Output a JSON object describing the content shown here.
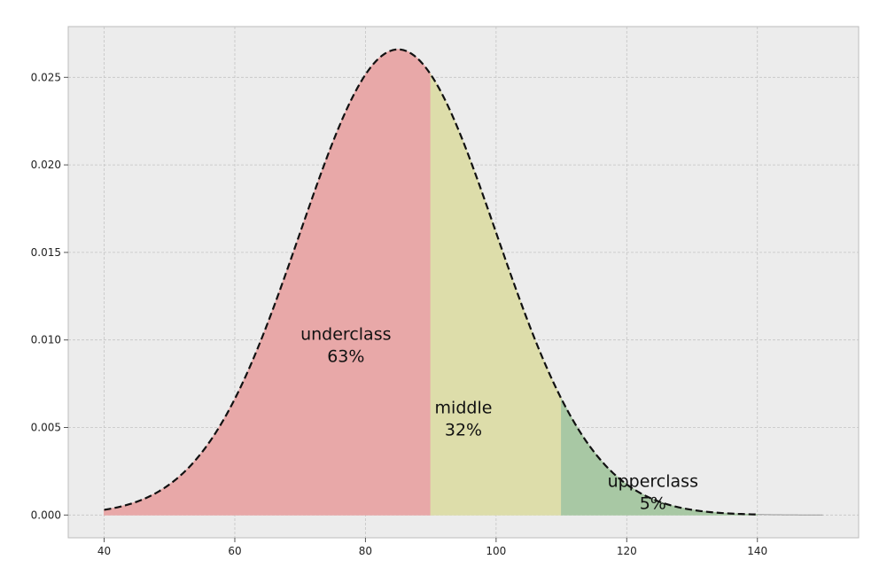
{
  "chart_data": {
    "type": "area",
    "curve": {
      "distribution": "normal",
      "mean": 85,
      "sd": 15,
      "x_start": 40,
      "x_end": 150
    },
    "regions": [
      {
        "name": "underclass",
        "percent_label": "63%",
        "x_from": 40,
        "x_to": 90,
        "color": "#e8a8a8",
        "label_x": 77,
        "label_y": 0.0093
      },
      {
        "name": "middle",
        "percent_label": "32%",
        "x_from": 90,
        "x_to": 110,
        "color": "#ddddaa",
        "label_x": 95,
        "label_y": 0.0051
      },
      {
        "name": "upperclass",
        "percent_label": "5%",
        "x_from": 110,
        "x_to": 140,
        "color": "#a8c8a4",
        "label_x": 124,
        "label_y": 0.0009
      }
    ],
    "dashed_curve_end": 140,
    "xlim": [
      34.5,
      155.5
    ],
    "ylim": [
      -0.0013,
      0.0279
    ],
    "x_ticks": [
      {
        "value": 40,
        "label": "40"
      },
      {
        "value": 60,
        "label": "60"
      },
      {
        "value": 80,
        "label": "80"
      },
      {
        "value": 100,
        "label": "100"
      },
      {
        "value": 120,
        "label": "120"
      },
      {
        "value": 140,
        "label": "140"
      }
    ],
    "y_ticks": [
      {
        "value": 0,
        "label": "0.000"
      },
      {
        "value": 0.005,
        "label": "0.005"
      },
      {
        "value": 0.01,
        "label": "0.010"
      },
      {
        "value": 0.015,
        "label": "0.015"
      },
      {
        "value": 0.02,
        "label": "0.020"
      },
      {
        "value": 0.025,
        "label": "0.025"
      }
    ],
    "grid": true,
    "colors": {
      "background": "#ececec",
      "grid": "#c4c4c4",
      "curve": "#111111",
      "frame": "#bcbcbc"
    }
  }
}
